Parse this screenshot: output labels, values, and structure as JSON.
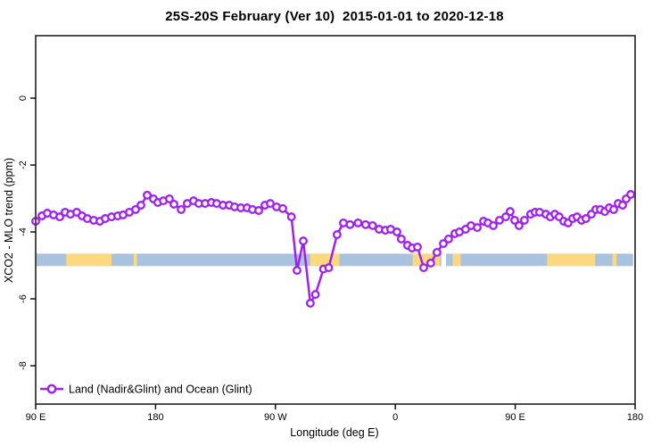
{
  "title": "25S-20S February (Ver 10)  2015-01-01 to 2020-12-18",
  "chart_data": {
    "type": "line",
    "title": "25S-20S February (Ver 10)  2015-01-01 to 2020-12-18",
    "xlabel": "Longitude (deg E)",
    "ylabel": "XCO2 - MLO trend (ppm)",
    "xlim": [
      90,
      540
    ],
    "ylim": [
      -9.146,
      1.867
    ],
    "grid": false,
    "x_ticks": [
      {
        "pos": 90,
        "label": "90 E"
      },
      {
        "pos": 180,
        "label": "180"
      },
      {
        "pos": 270,
        "label": "90 W"
      },
      {
        "pos": 360,
        "label": "0"
      },
      {
        "pos": 450,
        "label": "90 E"
      },
      {
        "pos": 540,
        "label": "180"
      }
    ],
    "y_ticks": [
      {
        "pos": 0,
        "label": "0"
      },
      {
        "pos": -2,
        "label": "-2"
      },
      {
        "pos": -4,
        "label": "-4"
      },
      {
        "pos": -6,
        "label": "-6"
      },
      {
        "pos": -8,
        "label": "-8"
      }
    ],
    "legend": {
      "position": "bottom-left",
      "entries": [
        {
          "label": "Land (Nadir&Glint) and Ocean (Glint)",
          "marker": "open-circle",
          "color": "#a020f0"
        }
      ]
    },
    "surface_band": {
      "description": "ocean (blue) vs land (yellow) strip along latitude band",
      "y_top": -4.65,
      "y_bottom": -5.02,
      "x_from": 90,
      "x_to": 538.5,
      "ocean_color": "#a9c2de",
      "land_color": "#fcd97e",
      "land_segments": [
        [
          113,
          147
        ],
        [
          163.5,
          166
        ],
        [
          296,
          318
        ],
        [
          373,
          393.5
        ],
        [
          403,
          409
        ],
        [
          474,
          510
        ],
        [
          523,
          526
        ]
      ],
      "gaps": [
        [
          394.5,
          398
        ]
      ]
    },
    "series": [
      {
        "name": "Land (Nadir&Glint) and Ocean (Glint)",
        "color": "#a020f0",
        "marker": "open-circle",
        "points": [
          [
            90.0,
            -3.68
          ],
          [
            94.7,
            -3.52
          ],
          [
            98.7,
            -3.44
          ],
          [
            103.4,
            -3.49
          ],
          [
            108.1,
            -3.55
          ],
          [
            112.1,
            -3.41
          ],
          [
            116.1,
            -3.47
          ],
          [
            120.8,
            -3.41
          ],
          [
            124.8,
            -3.52
          ],
          [
            128.8,
            -3.6
          ],
          [
            133.5,
            -3.65
          ],
          [
            138.2,
            -3.68
          ],
          [
            142.2,
            -3.6
          ],
          [
            146.9,
            -3.55
          ],
          [
            151.6,
            -3.52
          ],
          [
            155.6,
            -3.49
          ],
          [
            160.3,
            -3.41
          ],
          [
            165.0,
            -3.33
          ],
          [
            169.0,
            -3.2
          ],
          [
            173.7,
            -2.9
          ],
          [
            178.4,
            -3.01
          ],
          [
            181.7,
            -3.12
          ],
          [
            185.8,
            -3.07
          ],
          [
            190.4,
            -3.01
          ],
          [
            193.8,
            -3.17
          ],
          [
            199.2,
            -3.33
          ],
          [
            203.8,
            -3.15
          ],
          [
            208.5,
            -3.07
          ],
          [
            212.5,
            -3.15
          ],
          [
            217.2,
            -3.15
          ],
          [
            221.9,
            -3.12
          ],
          [
            225.9,
            -3.15
          ],
          [
            230.6,
            -3.2
          ],
          [
            235.3,
            -3.2
          ],
          [
            239.3,
            -3.25
          ],
          [
            244.0,
            -3.28
          ],
          [
            248.7,
            -3.28
          ],
          [
            252.7,
            -3.33
          ],
          [
            257.4,
            -3.36
          ],
          [
            262.1,
            -3.2
          ],
          [
            266.1,
            -3.15
          ],
          [
            270.8,
            -3.25
          ],
          [
            275.5,
            -3.3
          ],
          [
            282.0,
            -3.55
          ],
          [
            286.2,
            -5.15
          ],
          [
            290.9,
            -4.27
          ],
          [
            296.2,
            -6.13
          ],
          [
            300.0,
            -5.87
          ],
          [
            306.0,
            -5.11
          ],
          [
            310.0,
            -5.07
          ],
          [
            316.3,
            -4.08
          ],
          [
            321.0,
            -3.73
          ],
          [
            326.0,
            -3.78
          ],
          [
            332.0,
            -3.73
          ],
          [
            337.7,
            -3.78
          ],
          [
            342.9,
            -3.81
          ],
          [
            347.8,
            -3.92
          ],
          [
            352.5,
            -3.95
          ],
          [
            356.5,
            -3.92
          ],
          [
            361.2,
            -4.0
          ],
          [
            364.5,
            -4.21
          ],
          [
            369.2,
            -4.4
          ],
          [
            372.6,
            -4.48
          ],
          [
            376.6,
            -4.45
          ],
          [
            381.3,
            -5.07
          ],
          [
            386.6,
            -4.93
          ],
          [
            391.3,
            -4.61
          ],
          [
            396.0,
            -4.35
          ],
          [
            400.0,
            -4.21
          ],
          [
            404.7,
            -4.05
          ],
          [
            408.1,
            -4.0
          ],
          [
            412.8,
            -3.92
          ],
          [
            416.8,
            -3.81
          ],
          [
            421.5,
            -3.87
          ],
          [
            426.2,
            -3.68
          ],
          [
            429.5,
            -3.73
          ],
          [
            433.5,
            -3.81
          ],
          [
            438.2,
            -3.65
          ],
          [
            442.9,
            -3.55
          ],
          [
            446.2,
            -3.39
          ],
          [
            449.6,
            -3.65
          ],
          [
            452.9,
            -3.81
          ],
          [
            456.9,
            -3.65
          ],
          [
            461.6,
            -3.47
          ],
          [
            464.9,
            -3.41
          ],
          [
            468.3,
            -3.41
          ],
          [
            473.0,
            -3.47
          ],
          [
            476.3,
            -3.55
          ],
          [
            479.7,
            -3.47
          ],
          [
            483.0,
            -3.55
          ],
          [
            486.4,
            -3.68
          ],
          [
            489.7,
            -3.73
          ],
          [
            493.1,
            -3.6
          ],
          [
            496.4,
            -3.55
          ],
          [
            499.8,
            -3.65
          ],
          [
            503.1,
            -3.6
          ],
          [
            507.2,
            -3.47
          ],
          [
            510.5,
            -3.33
          ],
          [
            513.9,
            -3.33
          ],
          [
            517.2,
            -3.39
          ],
          [
            520.6,
            -3.28
          ],
          [
            523.9,
            -3.33
          ],
          [
            527.3,
            -3.15
          ],
          [
            530.6,
            -3.2
          ],
          [
            533.3,
            -3.01
          ],
          [
            536.7,
            -2.88
          ]
        ]
      }
    ]
  },
  "colors": {
    "series": "#a020f0",
    "ocean_band": "#a9c2de",
    "land_band": "#fcd97e",
    "frame": "#3a3a3a",
    "background": "#ffffff"
  }
}
